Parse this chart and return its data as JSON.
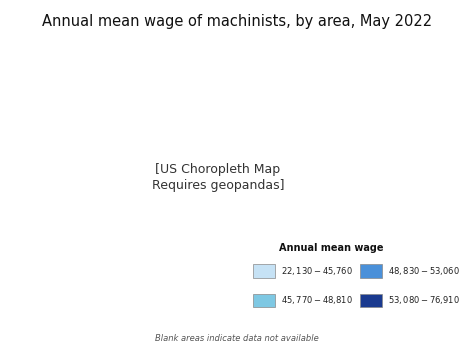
{
  "title": "Annual mean wage of machinists, by area, May 2022",
  "legend_title": "Annual mean wage",
  "legend_items": [
    {
      "label": "$22,130 - $45,760",
      "color": "#c6e2f5"
    },
    {
      "label": "$48,830 - $53,060",
      "color": "#4a90d9"
    },
    {
      "label": "$45,770 - $48,810",
      "color": "#7ec8e3"
    },
    {
      "label": "$53,080 - $76,910",
      "color": "#1a3a8f"
    }
  ],
  "blank_note": "Blank areas indicate data not available",
  "bg_color": "#ffffff",
  "title_fontsize": 10.5,
  "legend_title_fontsize": 7,
  "legend_label_fontsize": 6,
  "note_fontsize": 6
}
